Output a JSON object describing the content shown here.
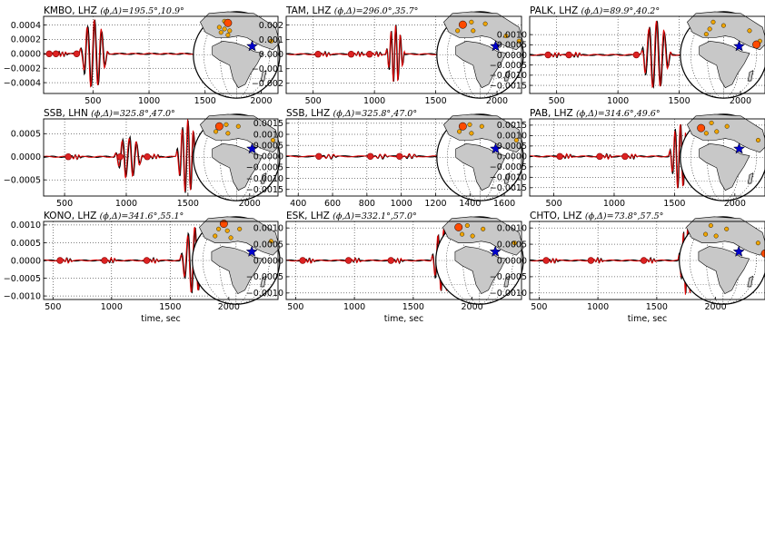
{
  "figure": {
    "xlabel": "time, sec",
    "colors": {
      "observed": "#000000",
      "synthetic": "#dd0000",
      "marker": "#dd2222",
      "land": "#c8c8c8",
      "ocean": "#ffffff",
      "event_star": "#0000cc",
      "station_small": "#f0a500",
      "station_main": "#ff4a00"
    }
  },
  "chart_data": [
    {
      "type": "line",
      "station": "KMBO",
      "channel": "LHZ",
      "phi": "195.5°",
      "delta": "10.9°",
      "xticks": [
        500,
        1000,
        1500,
        2000
      ],
      "yticks": [
        "0.0004",
        "0.0002",
        "0.0000",
        "−0.0002",
        "−0.0004"
      ],
      "yvals": [
        0.0004,
        0.0002,
        0,
        -0.0002,
        -0.0004
      ],
      "xlim": [
        60,
        2150
      ],
      "ylim": [
        -0.00055,
        0.00052
      ],
      "markers": [
        110,
        170,
        355
      ],
      "waves": [
        {
          "t0": 375,
          "t1": 640,
          "a": 0.00048
        }
      ],
      "map": {
        "main": [
          0.4,
          0.13
        ],
        "stations": [
          [
            0.36,
            0.11
          ],
          [
            0.3,
            0.18
          ],
          [
            0.36,
            0.2
          ],
          [
            0.42,
            0.22
          ],
          [
            0.32,
            0.24
          ],
          [
            0.4,
            0.27
          ],
          [
            0.9,
            0.34
          ]
        ],
        "star": [
          0.68,
          0.4
        ]
      }
    },
    {
      "type": "line",
      "station": "TAM",
      "channel": "LHZ",
      "phi": "296.0°",
      "delta": "35.7°",
      "xticks": [
        500,
        1000,
        1500,
        2000
      ],
      "yticks": [
        "0.002",
        "0.001",
        "0.000",
        "−0.001",
        "−0.002"
      ],
      "yvals": [
        0.002,
        0.001,
        0,
        -0.001,
        -0.002
      ],
      "xlim": [
        280,
        2200
      ],
      "ylim": [
        -0.0027,
        0.0026
      ],
      "markers": [
        540,
        810,
        960
      ],
      "waves": [
        {
          "t0": 1090,
          "t1": 1250,
          "a": 0.002
        }
      ],
      "map": {
        "main": [
          0.3,
          0.15
        ],
        "stations": [
          [
            0.4,
            0.12
          ],
          [
            0.24,
            0.22
          ],
          [
            0.42,
            0.22
          ],
          [
            0.56,
            0.14
          ],
          [
            0.8,
            0.28
          ],
          [
            0.95,
            0.34
          ]
        ],
        "star": [
          0.68,
          0.4
        ]
      }
    },
    {
      "type": "line",
      "station": "PALK",
      "channel": "LHZ",
      "phi": "89.9°",
      "delta": "40.2°",
      "xticks": [
        500,
        1000,
        1500,
        2000
      ],
      "yticks": [
        "0.0010",
        "0.0005",
        "0.0000",
        "−0.0005",
        "−0.0010",
        "−0.0015"
      ],
      "yvals": [
        0.001,
        0.0005,
        0,
        -0.0005,
        -0.001,
        -0.0015
      ],
      "xlim": [
        280,
        2200
      ],
      "ylim": [
        -0.0019,
        0.0019
      ],
      "markers": [
        430,
        600,
        1150
      ],
      "waves": [
        {
          "t0": 1180,
          "t1": 1440,
          "a": 0.0017
        }
      ],
      "map": {
        "main": [
          0.88,
          0.38
        ],
        "stations": [
          [
            0.38,
            0.12
          ],
          [
            0.34,
            0.2
          ],
          [
            0.3,
            0.26
          ],
          [
            0.5,
            0.16
          ],
          [
            0.8,
            0.22
          ],
          [
            0.92,
            0.34
          ]
        ],
        "star": [
          0.68,
          0.4
        ]
      }
    },
    {
      "type": "line",
      "station": "SSB",
      "channel": "LHN",
      "phi": "325.8°",
      "delta": "47.0°",
      "xticks": [
        500,
        1000,
        1500,
        2000
      ],
      "yticks": [
        "0.0005",
        "0.0000",
        "−0.0005"
      ],
      "yvals": [
        0.0005,
        0,
        -0.0005
      ],
      "xlim": [
        330,
        2230
      ],
      "ylim": [
        -0.00085,
        0.00082
      ],
      "markers": [
        530,
        950,
        1170
      ],
      "waves": [
        {
          "t0": 1400,
          "t1": 1590,
          "a": 0.0008
        },
        {
          "t0": 900,
          "t1": 1140,
          "a": 0.00045
        }
      ],
      "map": {
        "main": [
          0.3,
          0.14
        ],
        "stations": [
          [
            0.38,
            0.12
          ],
          [
            0.26,
            0.2
          ],
          [
            0.4,
            0.22
          ],
          [
            0.52,
            0.14
          ],
          [
            0.92,
            0.3
          ]
        ],
        "star": [
          0.68,
          0.4
        ]
      }
    },
    {
      "type": "line",
      "station": "SSB",
      "channel": "LHZ",
      "phi": "325.8°",
      "delta": "47.0°",
      "xticks": [
        400,
        600,
        800,
        1000,
        1200,
        1400,
        1600
      ],
      "yticks": [
        "0.0015",
        "0.0010",
        "0.0005",
        "0.0000",
        "−0.0005",
        "−0.0010",
        "−0.0015"
      ],
      "yvals": [
        0.0015,
        0.001,
        0.0005,
        0,
        -0.0005,
        -0.001,
        -0.0015
      ],
      "xlim": [
        330,
        1700
      ],
      "ylim": [
        -0.0018,
        0.0017
      ],
      "markers": [
        520,
        820,
        990
      ],
      "waves": [
        {
          "t0": 1390,
          "t1": 1560,
          "a": 0.0017
        }
      ],
      "map": {
        "main": [
          0.3,
          0.14
        ],
        "stations": [
          [
            0.38,
            0.12
          ],
          [
            0.26,
            0.2
          ],
          [
            0.4,
            0.22
          ],
          [
            0.52,
            0.14
          ],
          [
            0.92,
            0.3
          ]
        ],
        "star": [
          0.68,
          0.4
        ]
      }
    },
    {
      "type": "line",
      "station": "PAB",
      "channel": "LHZ",
      "phi": "314.6°",
      "delta": "49.6°",
      "xticks": [
        500,
        1000,
        1500,
        2000
      ],
      "yticks": [
        "0.0015",
        "0.0010",
        "0.0005",
        "0.0000",
        "−0.0005",
        "−0.0010",
        "−0.0015"
      ],
      "yvals": [
        0.0015,
        0.001,
        0.0005,
        0,
        -0.0005,
        -0.001,
        -0.0015
      ],
      "xlim": [
        300,
        2250
      ],
      "ylim": [
        -0.0019,
        0.0018
      ],
      "markers": [
        550,
        880,
        1090
      ],
      "waves": [
        {
          "t0": 1450,
          "t1": 1640,
          "a": 0.0016
        }
      ],
      "map": {
        "main": [
          0.24,
          0.16
        ],
        "stations": [
          [
            0.36,
            0.1
          ],
          [
            0.3,
            0.22
          ],
          [
            0.42,
            0.2
          ],
          [
            0.54,
            0.14
          ],
          [
            0.9,
            0.3
          ]
        ],
        "star": [
          0.68,
          0.4
        ]
      }
    },
    {
      "type": "line",
      "station": "KONO",
      "channel": "LHZ",
      "phi": "341.6°",
      "delta": "55.1°",
      "xticks": [
        500,
        1000,
        1500,
        2000
      ],
      "yticks": [
        "0.0010",
        "0.0005",
        "0.0000",
        "−0.0005",
        "−0.0010"
      ],
      "yvals": [
        0.001,
        0.0005,
        0,
        -0.0005,
        -0.001
      ],
      "xlim": [
        420,
        2420
      ],
      "ylim": [
        -0.0011,
        0.0011
      ],
      "markers": [
        560,
        940,
        1300
      ],
      "waves": [
        {
          "t0": 1580,
          "t1": 1830,
          "a": 0.00095
        }
      ],
      "map": {
        "main": [
          0.36,
          0.08
        ],
        "stations": [
          [
            0.3,
            0.14
          ],
          [
            0.4,
            0.16
          ],
          [
            0.26,
            0.22
          ],
          [
            0.44,
            0.24
          ],
          [
            0.54,
            0.14
          ],
          [
            0.9,
            0.28
          ]
        ],
        "star": [
          0.68,
          0.4
        ]
      }
    },
    {
      "type": "line",
      "station": "ESK",
      "channel": "LHZ",
      "phi": "332.1°",
      "delta": "57.0°",
      "xticks": [
        500,
        1000,
        1500,
        2000
      ],
      "yticks": [
        "0.0010",
        "0.0005",
        "0.0000",
        "−0.0005",
        "−0.0010"
      ],
      "yvals": [
        0.001,
        0.0005,
        0,
        -0.0005,
        -0.001
      ],
      "xlim": [
        420,
        2420
      ],
      "ylim": [
        -0.0012,
        0.0012
      ],
      "markers": [
        560,
        950,
        1310
      ],
      "waves": [
        {
          "t0": 1650,
          "t1": 1860,
          "a": 0.001
        }
      ],
      "map": {
        "main": [
          0.26,
          0.12
        ],
        "stations": [
          [
            0.36,
            0.1
          ],
          [
            0.3,
            0.2
          ],
          [
            0.42,
            0.22
          ],
          [
            0.54,
            0.14
          ],
          [
            0.9,
            0.3
          ]
        ],
        "star": [
          0.68,
          0.4
        ]
      }
    },
    {
      "type": "line",
      "station": "CHTO",
      "channel": "LHZ",
      "phi": "73.8°",
      "delta": "57.5°",
      "xticks": [
        500,
        1000,
        1500,
        2000
      ],
      "yticks": [
        "0.0010",
        "0.0005",
        "0.0000",
        "−0.0005",
        "−0.0010"
      ],
      "yvals": [
        0.001,
        0.0005,
        0,
        -0.0005,
        -0.001
      ],
      "xlim": [
        420,
        2420
      ],
      "ylim": [
        -0.0012,
        0.0012
      ],
      "markers": [
        560,
        940,
        1390
      ],
      "waves": [
        {
          "t0": 1680,
          "t1": 1840,
          "a": 0.0011
        }
      ],
      "map": {
        "main": [
          0.98,
          0.42
        ],
        "stations": [
          [
            0.36,
            0.1
          ],
          [
            0.3,
            0.2
          ],
          [
            0.42,
            0.22
          ],
          [
            0.54,
            0.14
          ],
          [
            0.9,
            0.3
          ]
        ],
        "star": [
          0.68,
          0.4
        ]
      }
    }
  ]
}
